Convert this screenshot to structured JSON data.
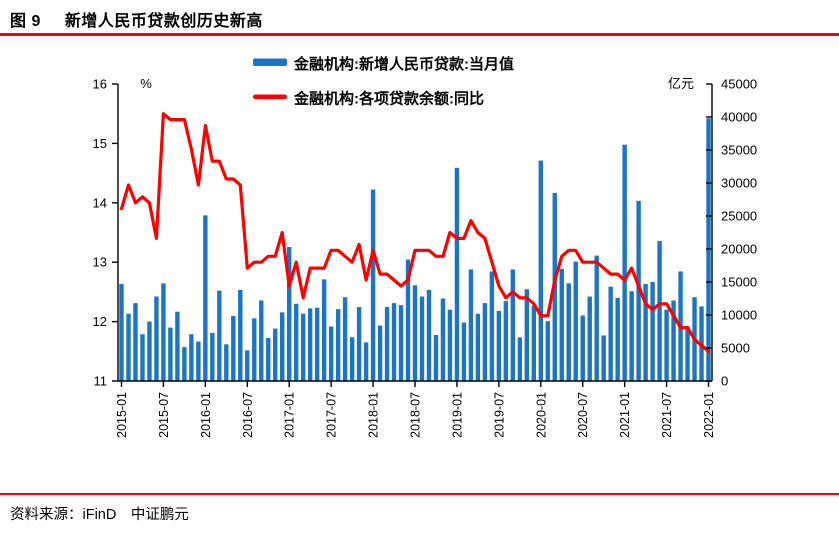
{
  "header": {
    "figure_label": "图 9",
    "title": "新增人民币贷款创历史新高"
  },
  "footer": {
    "source": "资料来源：iFinD　中证鹏元"
  },
  "colors": {
    "bar": "#1b74c5",
    "line": "#fe0000",
    "rule": "#fe0000",
    "axis": "#000000",
    "text": "#000000"
  },
  "chart_data": {
    "type": "bar",
    "title": "",
    "legend_position": "top-center",
    "grid": false,
    "legend": [
      {
        "label": "金融机构:新增人民币贷款:当月值",
        "marker": "bar",
        "color": "#1b74c5"
      },
      {
        "label": "金融机构:各项贷款余额:同比",
        "marker": "line",
        "color": "#fe0000"
      }
    ],
    "left_axis": {
      "unit_label": "%",
      "min": 11,
      "max": 16,
      "ticks": [
        11,
        12,
        13,
        14,
        15,
        16
      ]
    },
    "right_axis": {
      "unit_label": "亿元",
      "min": 0,
      "max": 45000,
      "ticks": [
        0,
        5000,
        10000,
        15000,
        20000,
        25000,
        30000,
        35000,
        40000,
        45000
      ]
    },
    "x_start": "2015-01",
    "x_end": "2022-01",
    "x_tick_labels": [
      "2015-01",
      "2015-07",
      "2016-01",
      "2016-07",
      "2017-01",
      "2017-07",
      "2018-01",
      "2018-07",
      "2019-01",
      "2019-07",
      "2020-01",
      "2020-07",
      "2021-01",
      "2021-07",
      "2022-01"
    ],
    "x_tick_every_months": 6,
    "series": [
      {
        "name": "金融机构:新增人民币贷款:当月值",
        "type": "bar",
        "axis": "right",
        "unit": "亿元",
        "values": [
          14700,
          10200,
          11800,
          7079,
          9008,
          12800,
          14800,
          8096,
          10500,
          5136,
          7089,
          5978,
          25100,
          7266,
          13700,
          5556,
          9855,
          13800,
          4636,
          9487,
          12200,
          6513,
          7946,
          10400,
          20300,
          11700,
          10200,
          11000,
          11100,
          15400,
          8255,
          10900,
          12700,
          6632,
          11200,
          5844,
          29000,
          8393,
          11200,
          11800,
          11500,
          18400,
          14500,
          12800,
          13800,
          6970,
          12500,
          10800,
          32300,
          8858,
          16900,
          10200,
          11800,
          16600,
          10600,
          12100,
          16900,
          6613,
          13900,
          11400,
          33400,
          9057,
          28500,
          17000,
          14800,
          18100,
          9927,
          12800,
          19000,
          6898,
          14300,
          12600,
          35800,
          13600,
          27300,
          14700,
          15000,
          21200,
          10800,
          12200,
          16600,
          8262,
          12700,
          11300,
          39800
        ]
      },
      {
        "name": "金融机构:各项贷款余额:同比",
        "type": "line",
        "axis": "left",
        "unit": "%",
        "values": [
          13.9,
          14.3,
          14.0,
          14.1,
          14.0,
          13.4,
          15.5,
          15.4,
          15.4,
          15.4,
          14.9,
          14.3,
          15.3,
          14.7,
          14.7,
          14.4,
          14.4,
          14.3,
          12.9,
          13.0,
          13.0,
          13.1,
          13.1,
          13.5,
          12.6,
          13.0,
          12.4,
          12.9,
          12.9,
          12.9,
          13.2,
          13.2,
          13.1,
          13.0,
          13.3,
          12.7,
          13.2,
          12.8,
          12.8,
          12.7,
          12.6,
          12.7,
          13.2,
          13.2,
          13.2,
          13.1,
          13.1,
          13.5,
          13.4,
          13.4,
          13.7,
          13.5,
          13.4,
          13.0,
          12.6,
          12.4,
          12.5,
          12.4,
          12.4,
          12.3,
          12.1,
          12.1,
          12.7,
          13.1,
          13.2,
          13.2,
          13.0,
          13.0,
          13.0,
          12.9,
          12.8,
          12.8,
          12.7,
          12.9,
          12.6,
          12.3,
          12.2,
          12.3,
          12.3,
          12.1,
          11.9,
          11.9,
          11.7,
          11.6,
          11.5
        ]
      }
    ]
  }
}
